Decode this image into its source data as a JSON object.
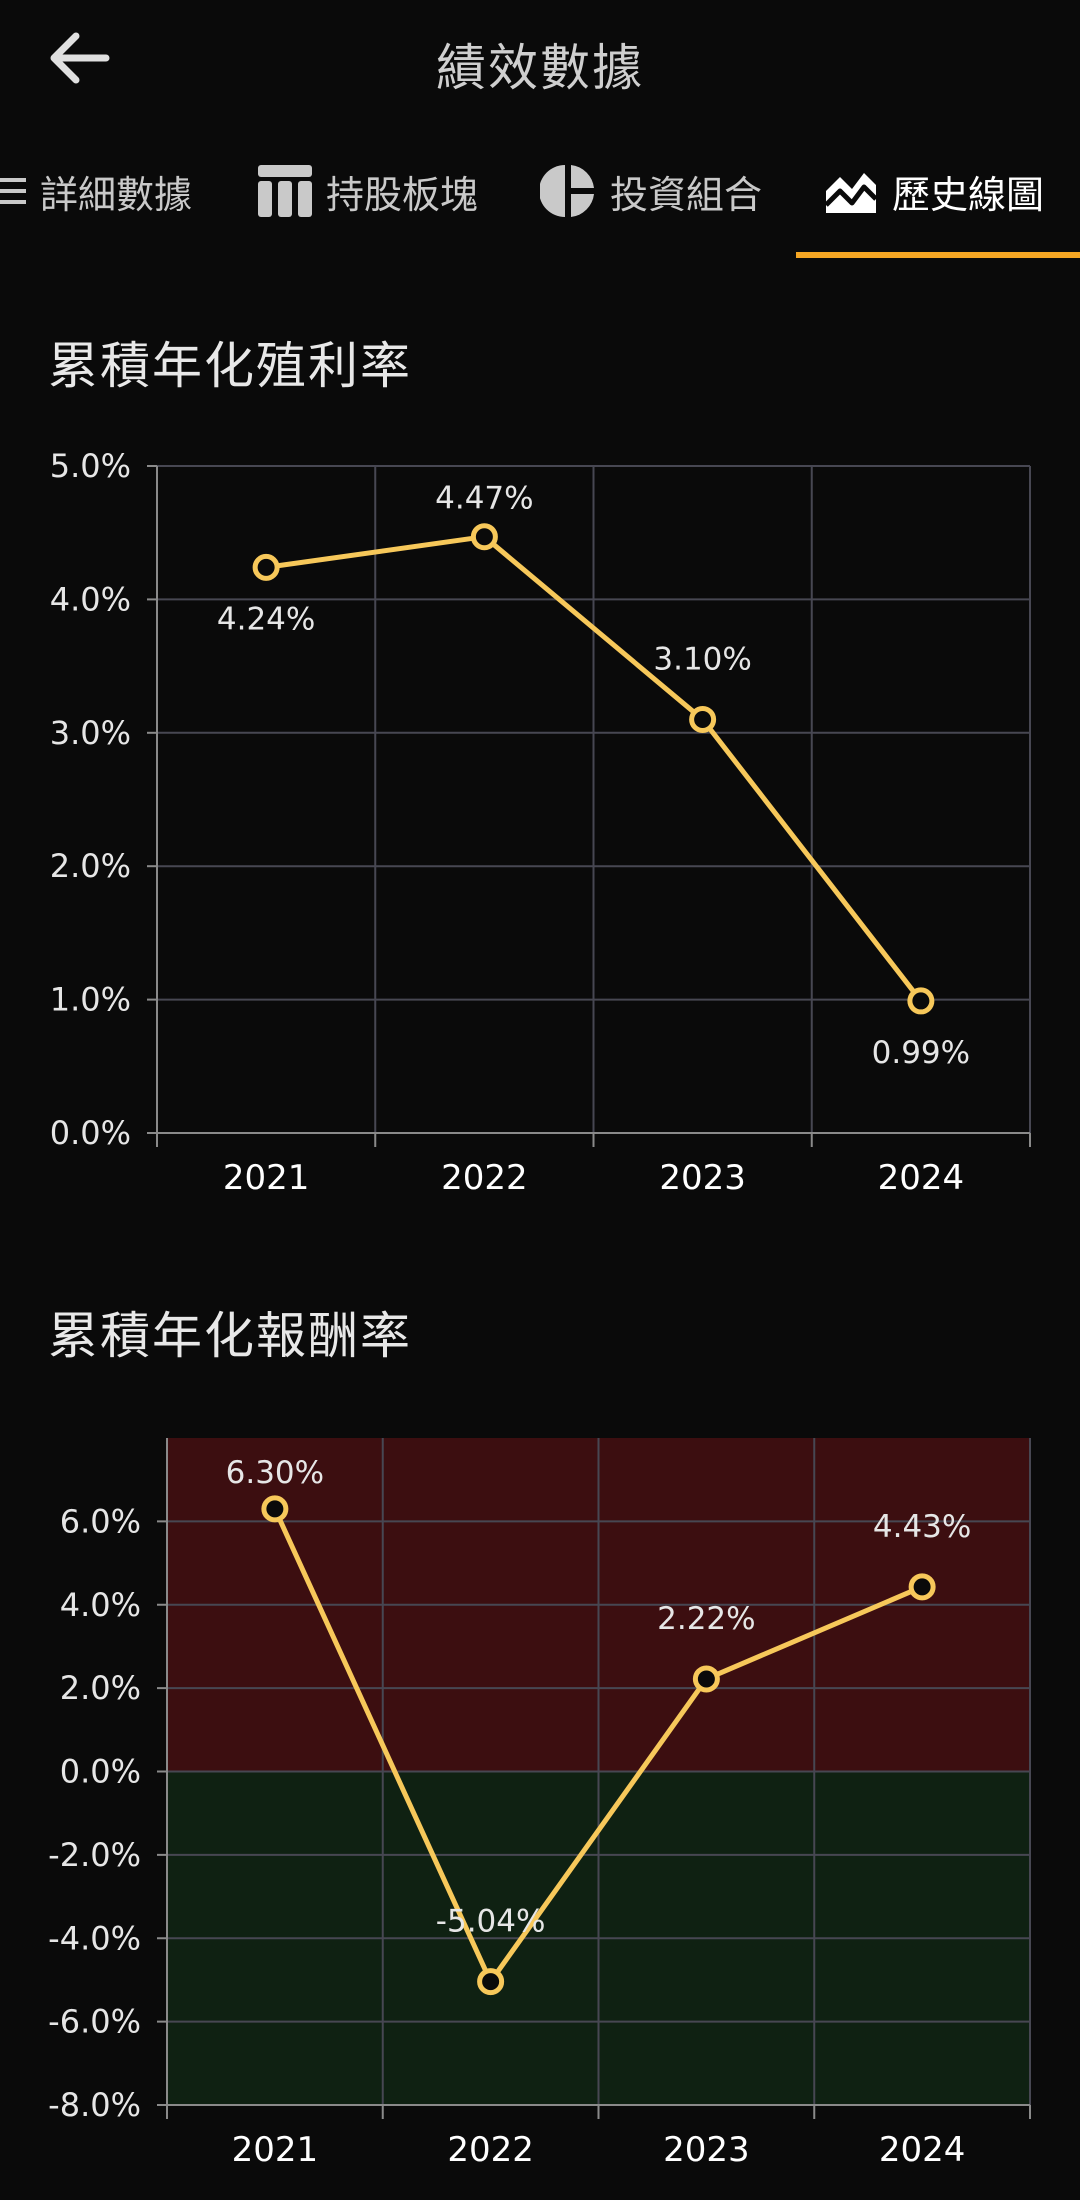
{
  "header": {
    "title": "績效數據"
  },
  "tabs": [
    {
      "label": "詳細數據",
      "icon": "list-icon"
    },
    {
      "label": "持股板塊",
      "icon": "table-icon"
    },
    {
      "label": "投資組合",
      "icon": "pie-chart-icon"
    },
    {
      "label": "歷史線圖",
      "icon": "line-chart-icon",
      "active": true
    }
  ],
  "colors": {
    "accent": "#f5a623",
    "line": "#f7c85a",
    "positive_band": "#3c0e10",
    "negative_band": "#0f2112"
  },
  "chart_data": [
    {
      "type": "line",
      "title": "累積年化殖利率",
      "x": [
        "2021",
        "2022",
        "2023",
        "2024"
      ],
      "values": [
        4.24,
        4.47,
        3.1,
        0.99
      ],
      "data_labels": [
        "4.24%",
        "4.47%",
        "3.10%",
        "0.99%"
      ],
      "ylim": [
        0,
        5
      ],
      "yticks": [
        0,
        1,
        2,
        3,
        4,
        5
      ],
      "ytick_labels": [
        "0.0%",
        "1.0%",
        "2.0%",
        "3.0%",
        "4.0%",
        "5.0%"
      ],
      "grid": true
    },
    {
      "type": "line",
      "title": "累積年化報酬率",
      "x": [
        "2021",
        "2022",
        "2023",
        "2024"
      ],
      "values": [
        6.3,
        -5.04,
        2.22,
        4.43
      ],
      "data_labels": [
        "6.30%",
        "-5.04%",
        "2.22%",
        "4.43%"
      ],
      "ylim": [
        -8,
        8
      ],
      "yticks": [
        -8,
        -6,
        -4,
        -2,
        0,
        2,
        4,
        6
      ],
      "ytick_labels": [
        "-8.0%",
        "-6.0%",
        "-4.0%",
        "-2.0%",
        "0.0%",
        "2.0%",
        "4.0%",
        "6.0%"
      ],
      "grid": true,
      "bands": {
        "above_zero": "positive_band",
        "below_zero": "negative_band"
      }
    }
  ]
}
